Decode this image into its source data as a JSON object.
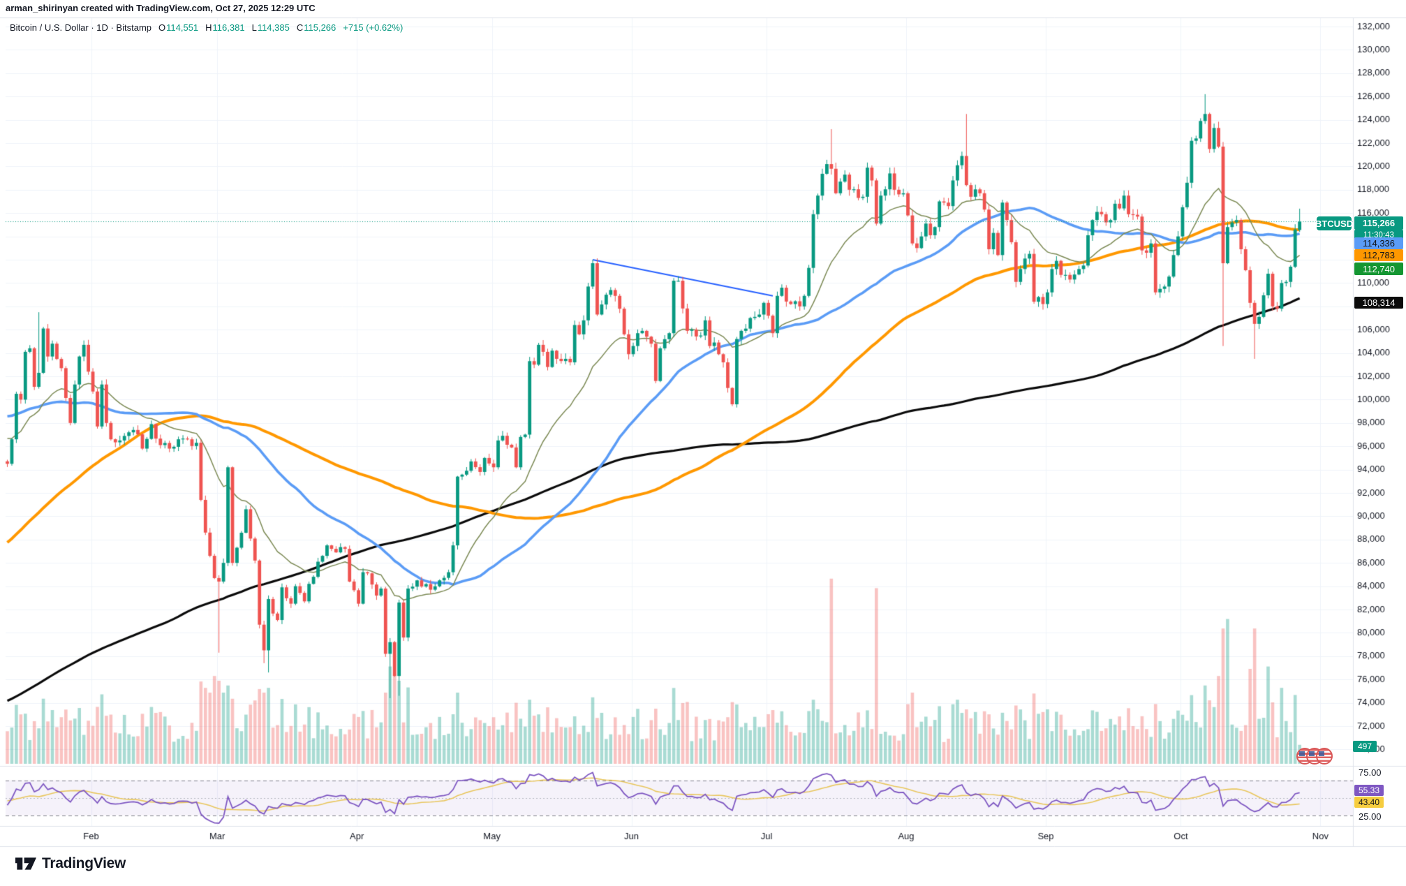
{
  "header": {
    "attribution": "arman_shirinyan created with TradingView.com, Oct 27, 2025 12:29 UTC"
  },
  "legend": {
    "title": "Bitcoin / U.S. Dollar · 1D · Bitstamp",
    "ohlc": [
      {
        "label": "O",
        "value": "114,551"
      },
      {
        "label": "H",
        "value": "116,381"
      },
      {
        "label": "L",
        "value": "114,385"
      },
      {
        "label": "C",
        "value": "115,266"
      }
    ],
    "change": "+715 (+0.62%)"
  },
  "badges": {
    "symbol": "BTCUSD",
    "last_price": "115,266",
    "countdown": "11:30:43",
    "sma50": "114,336",
    "sma100": "112,783",
    "ema21": "112,740",
    "sma200": "108,314",
    "volume": "497",
    "rsi": "55.33",
    "rsi_ma": "43.40"
  },
  "rsi_axis": {
    "upper": "75.00",
    "lower": "25.00"
  },
  "logo": {
    "text": "TradingView"
  },
  "chart_data": {
    "type": "candlestick",
    "title": "Bitcoin / U.S. Dollar, 1D, Bitstamp",
    "symbol": "BTCUSD",
    "interval": "1D",
    "last_day": 287,
    "last_ohlc": {
      "open": 114551,
      "high": 116381,
      "low": 114385,
      "close": 115266,
      "change": 715,
      "change_pct": 0.62
    },
    "y_axis": {
      "min": 70000,
      "max": 132000,
      "tick": 2000,
      "hidden_ticks": [
        108000,
        112000,
        114000
      ]
    },
    "x_axis": {
      "months": [
        [
          "Feb",
          19
        ],
        [
          "Mar",
          47
        ],
        [
          "Apr",
          78
        ],
        [
          "May",
          108
        ],
        [
          "Jun",
          139
        ],
        [
          "Jul",
          169
        ],
        [
          "Aug",
          200
        ],
        [
          "Sep",
          231
        ],
        [
          "Oct",
          261
        ],
        [
          "Nov",
          292
        ]
      ]
    },
    "anchors": [
      [
        0,
        94.5
      ],
      [
        1,
        96.6
      ],
      [
        2,
        100.5
      ],
      [
        3,
        100.0
      ],
      [
        4,
        104.1
      ],
      [
        5,
        104.4
      ],
      [
        6,
        101.1
      ],
      [
        7,
        102.3
      ],
      [
        8,
        106.1
      ],
      [
        9,
        103.7
      ],
      [
        10,
        104.8
      ],
      [
        12,
        102.7
      ],
      [
        14,
        98.0
      ],
      [
        15,
        101.3
      ],
      [
        16,
        103.7
      ],
      [
        17,
        104.7
      ],
      [
        18,
        102.4
      ],
      [
        19,
        100.7
      ],
      [
        20,
        97.7
      ],
      [
        21,
        101.3
      ],
      [
        22,
        98.0
      ],
      [
        23,
        96.6
      ],
      [
        25,
        96.5
      ],
      [
        28,
        97.4
      ],
      [
        30,
        95.8
      ],
      [
        32,
        97.9
      ],
      [
        34,
        96.1
      ],
      [
        36,
        95.8
      ],
      [
        38,
        96.6
      ],
      [
        40,
        96.6
      ],
      [
        42,
        96.3
      ],
      [
        43,
        91.4
      ],
      [
        44,
        88.6
      ],
      [
        46,
        84.7
      ],
      [
        47,
        84.4
      ],
      [
        48,
        86.0
      ],
      [
        49,
        94.2
      ],
      [
        50,
        86.0
      ],
      [
        51,
        87.3
      ],
      [
        53,
        90.6
      ],
      [
        55,
        86.2
      ],
      [
        56,
        80.7
      ],
      [
        57,
        78.5
      ],
      [
        58,
        82.9
      ],
      [
        60,
        81.1
      ],
      [
        61,
        83.9
      ],
      [
        63,
        82.5
      ],
      [
        64,
        84.0
      ],
      [
        66,
        82.7
      ],
      [
        67,
        84.2
      ],
      [
        69,
        86.1
      ],
      [
        71,
        87.5
      ],
      [
        73,
        86.9
      ],
      [
        75,
        87.2
      ],
      [
        76,
        84.4
      ],
      [
        78,
        82.5
      ],
      [
        79,
        85.2
      ],
      [
        80,
        85.1
      ],
      [
        82,
        83.2
      ],
      [
        83,
        83.8
      ],
      [
        84,
        78.2
      ],
      [
        85,
        79.2
      ],
      [
        86,
        76.3
      ],
      [
        87,
        82.6
      ],
      [
        88,
        79.6
      ],
      [
        89,
        83.8
      ],
      [
        91,
        84.5
      ],
      [
        94,
        83.7
      ],
      [
        96,
        84.5
      ],
      [
        98,
        85.2
      ],
      [
        99,
        87.5
      ],
      [
        100,
        93.4
      ],
      [
        102,
        93.9
      ],
      [
        103,
        94.7
      ],
      [
        105,
        93.8
      ],
      [
        106,
        95.0
      ],
      [
        108,
        94.2
      ],
      [
        109,
        96.5
      ],
      [
        110,
        96.9
      ],
      [
        112,
        95.9
      ],
      [
        113,
        94.2
      ],
      [
        114,
        96.8
      ],
      [
        115,
        97.0
      ],
      [
        116,
        103.3
      ],
      [
        117,
        103.0
      ],
      [
        118,
        104.7
      ],
      [
        119,
        104.1
      ],
      [
        120,
        102.8
      ],
      [
        121,
        104.2
      ],
      [
        122,
        103.5
      ],
      [
        124,
        103.5
      ],
      [
        125,
        103.2
      ],
      [
        126,
        106.4
      ],
      [
        127,
        105.6
      ],
      [
        128,
        106.8
      ],
      [
        129,
        109.7
      ],
      [
        130,
        111.7
      ],
      [
        131,
        107.3
      ],
      [
        133,
        109.0
      ],
      [
        134,
        109.4
      ],
      [
        135,
        108.9
      ],
      [
        136,
        107.8
      ],
      [
        137,
        105.6
      ],
      [
        138,
        103.9
      ],
      [
        139,
        104.6
      ],
      [
        140,
        105.7
      ],
      [
        141,
        105.9
      ],
      [
        142,
        105.4
      ],
      [
        143,
        104.8
      ],
      [
        144,
        101.6
      ],
      [
        145,
        104.4
      ],
      [
        147,
        105.7
      ],
      [
        148,
        110.2
      ],
      [
        149,
        110.2
      ],
      [
        151,
        105.9
      ],
      [
        152,
        106.0
      ],
      [
        154,
        105.5
      ],
      [
        155,
        106.8
      ],
      [
        156,
        104.6
      ],
      [
        157,
        104.9
      ],
      [
        159,
        103.2
      ],
      [
        160,
        101.0
      ],
      [
        161,
        99.6
      ],
      [
        162,
        105.2
      ],
      [
        163,
        105.9
      ],
      [
        165,
        107.0
      ],
      [
        166,
        107.1
      ],
      [
        168,
        108.3
      ],
      [
        169,
        107.2
      ],
      [
        170,
        105.7
      ],
      [
        171,
        108.9
      ],
      [
        172,
        109.6
      ],
      [
        174,
        108.2
      ],
      [
        176,
        108.0
      ],
      [
        177,
        108.9
      ],
      [
        178,
        111.3
      ],
      [
        179,
        115.9
      ],
      [
        180,
        117.5
      ],
      [
        182,
        120.2
      ],
      [
        183,
        119.8
      ],
      [
        184,
        117.7
      ],
      [
        185,
        118.7
      ],
      [
        186,
        119.3
      ],
      [
        187,
        118.0
      ],
      [
        189,
        117.3
      ],
      [
        190,
        117.4
      ],
      [
        191,
        119.9
      ],
      [
        192,
        118.8
      ],
      [
        193,
        115.1
      ],
      [
        194,
        117.5
      ],
      [
        196,
        119.4
      ],
      [
        197,
        118.0
      ],
      [
        199,
        117.7
      ],
      [
        200,
        115.8
      ],
      [
        201,
        113.4
      ],
      [
        202,
        113.0
      ],
      [
        203,
        114.0
      ],
      [
        204,
        115.1
      ],
      [
        205,
        114.1
      ],
      [
        206,
        114.8
      ],
      [
        207,
        117.0
      ],
      [
        208,
        116.9
      ],
      [
        209,
        116.6
      ],
      [
        210,
        118.8
      ],
      [
        211,
        120.1
      ],
      [
        212,
        120.9
      ],
      [
        213,
        118.4
      ],
      [
        214,
        117.4
      ],
      [
        216,
        117.7
      ],
      [
        217,
        116.3
      ],
      [
        218,
        112.9
      ],
      [
        219,
        114.3
      ],
      [
        220,
        112.4
      ],
      [
        221,
        116.9
      ],
      [
        222,
        115.4
      ],
      [
        223,
        113.5
      ],
      [
        224,
        110.1
      ],
      [
        225,
        111.2
      ],
      [
        226,
        112.1
      ],
      [
        227,
        112.5
      ],
      [
        228,
        108.4
      ],
      [
        229,
        108.8
      ],
      [
        230,
        108.2
      ],
      [
        231,
        109.2
      ],
      [
        232,
        111.2
      ],
      [
        233,
        111.9
      ],
      [
        234,
        110.7
      ],
      [
        235,
        110.7
      ],
      [
        236,
        110.3
      ],
      [
        238,
        111.2
      ],
      [
        239,
        111.5
      ],
      [
        240,
        114.1
      ],
      [
        241,
        115.4
      ],
      [
        242,
        116.1
      ],
      [
        243,
        115.9
      ],
      [
        245,
        115.4
      ],
      [
        246,
        116.8
      ],
      [
        247,
        116.4
      ],
      [
        248,
        117.5
      ],
      [
        249,
        115.9
      ],
      [
        251,
        115.7
      ],
      [
        252,
        112.8
      ],
      [
        253,
        112.6
      ],
      [
        254,
        113.4
      ],
      [
        255,
        109.2
      ],
      [
        256,
        109.5
      ],
      [
        257,
        109.7
      ],
      [
        259,
        112.4
      ],
      [
        260,
        114.0
      ],
      [
        261,
        116.5
      ],
      [
        262,
        118.6
      ],
      [
        263,
        122.2
      ],
      [
        264,
        122.4
      ],
      [
        265,
        123.9
      ],
      [
        266,
        124.5
      ],
      [
        267,
        121.5
      ],
      [
        268,
        123.3
      ],
      [
        269,
        121.7
      ],
      [
        270,
        111.7
      ],
      [
        271,
        114.8
      ],
      [
        272,
        115.2
      ],
      [
        273,
        115.4
      ],
      [
        274,
        112.9
      ],
      [
        275,
        111.1
      ],
      [
        276,
        108.3
      ],
      [
        277,
        106.5
      ],
      [
        278,
        107.1
      ],
      [
        280,
        110.8
      ],
      [
        281,
        108.0
      ],
      [
        282,
        107.8
      ],
      [
        283,
        110.0
      ],
      [
        284,
        110.1
      ],
      [
        285,
        111.4
      ],
      [
        286,
        114.6
      ],
      [
        287,
        115.266
      ]
    ],
    "pre_anchors": [
      [
        -200,
        61.7
      ],
      [
        -193,
        57.0
      ],
      [
        -186,
        57.9
      ],
      [
        -179,
        63.9
      ],
      [
        -172,
        65.8
      ],
      [
        -165,
        65.4
      ],
      [
        -161,
        54.0
      ],
      [
        -158,
        61.7
      ],
      [
        -153,
        60.6
      ],
      [
        -146,
        59.0
      ],
      [
        -139,
        59.5
      ],
      [
        -132,
        57.5
      ],
      [
        -125,
        57.6
      ],
      [
        -118,
        60.3
      ],
      [
        -111,
        64.3
      ],
      [
        -104,
        61.5
      ],
      [
        -97,
        63.5
      ],
      [
        -90,
        68.5
      ],
      [
        -83,
        70.0
      ],
      [
        -76,
        73.0
      ],
      [
        -71,
        70.0
      ],
      [
        -66,
        79.0
      ],
      [
        -61,
        92.0
      ],
      [
        -57,
        91.0
      ],
      [
        -52,
        99.0
      ],
      [
        -48,
        93.0
      ],
      [
        -43,
        98.0
      ],
      [
        -38,
        101.0
      ],
      [
        -33,
        103.0
      ],
      [
        -28,
        106.5
      ],
      [
        -26,
        102.0
      ],
      [
        -23,
        98.5
      ],
      [
        -18,
        97.0
      ],
      [
        -13,
        94.5
      ],
      [
        -9,
        98.2
      ],
      [
        -7,
        102.1
      ],
      [
        -5,
        95.0
      ],
      [
        -3,
        94.7
      ],
      [
        -1,
        94.6
      ]
    ],
    "wick_overrides": {
      "7": {
        "h": 107.5
      },
      "47": {
        "l": 78.3
      },
      "57": {
        "l": 77.4
      },
      "58": {
        "l": 76.6
      },
      "85": {
        "l": 74.4
      },
      "87": {
        "l": 74.6
      },
      "130": {
        "h": 112.0
      },
      "183": {
        "h": 123.2
      },
      "213": {
        "h": 124.5
      },
      "266": {
        "h": 126.2
      },
      "270": {
        "l": 104.6
      },
      "277": {
        "l": 103.5
      },
      "287": {
        "o": 114.551,
        "h": 116.381,
        "l": 114.385,
        "c": 115.266
      }
    },
    "vol_overrides": {
      "44": 160,
      "45": 150,
      "46": 185,
      "47": 175,
      "48": 150,
      "49": 165,
      "57": 150,
      "58": 160,
      "84": 150,
      "85": 205,
      "86": 190,
      "87": 175,
      "100": 150,
      "116": 135,
      "130": 140,
      "161": 130,
      "162": 125,
      "179": 135,
      "183": 390,
      "193": 370,
      "201": 150,
      "211": 135,
      "266": 165,
      "269": 185,
      "270": 285,
      "271": 305,
      "276": 200,
      "277": 285,
      "280": 205,
      "283": 160,
      "286": 145,
      "287": 40
    },
    "overlays": {
      "ema": {
        "period": 21,
        "color": "#7d8b56",
        "last": 112740
      },
      "sma50": {
        "period": 50,
        "color": "#5b9cf6",
        "last": 114336
      },
      "sma100": {
        "period": 100,
        "color": "#ff9800",
        "last": 112783
      },
      "sma200": {
        "period": 200,
        "color": "#0b0b0b",
        "last": 108314
      }
    },
    "trendline": {
      "from": [
        130,
        112.0
      ],
      "to": [
        170,
        108.9
      ],
      "color": "#2962ff"
    },
    "rsi": {
      "period": 14,
      "ma_period": 14,
      "upper": 70,
      "lower": 30,
      "mid": 50,
      "last": 55.33,
      "ma_last": 43.4,
      "line_color": "#7e57c2",
      "ma_color": "#e9c75e",
      "band_fill": "rgba(126,87,194,0.08)"
    },
    "volume": {
      "last": 497,
      "up_color": "rgba(8,153,129,0.35)",
      "down_color": "rgba(239,83,80,0.35)"
    },
    "colors": {
      "up": "#089981",
      "down": "#ef5350",
      "grid": "#f0f3fa",
      "border": "#e0e3eb",
      "text": "#131722",
      "last_price_line": "#089981"
    }
  }
}
